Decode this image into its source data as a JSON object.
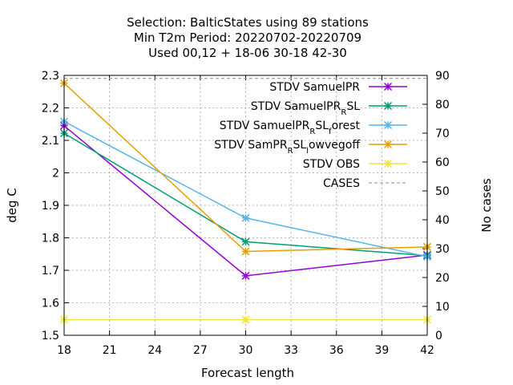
{
  "chart_data": {
    "type": "line",
    "title_lines": [
      "Selection: BalticStates using    89 stations",
      "Min T2m   Period: 20220702-20220709",
      "Used  00,12  + 18-06 30-18 42-30"
    ],
    "xlabel": "Forecast length",
    "ylabel": "deg C",
    "y2label": "No cases",
    "xlim": [
      18,
      42
    ],
    "ylim": [
      1.5,
      2.3
    ],
    "y2lim": [
      0,
      90
    ],
    "xticks": [
      "18",
      "21",
      "24",
      "27",
      "30",
      "33",
      "36",
      "39",
      "42"
    ],
    "yticks": [
      "1.5",
      "1.6",
      "1.7",
      "1.8",
      "1.9",
      "2",
      "2.1",
      "2.2",
      "2.3"
    ],
    "y2ticks": [
      "0",
      "10",
      "20",
      "30",
      "40",
      "50",
      "60",
      "70",
      "80",
      "90"
    ],
    "grid": true,
    "legend_position": "top-right",
    "x": [
      18,
      30,
      42
    ],
    "series": [
      {
        "name": "STDV SamuelPR",
        "name_parts": [
          {
            "t": "STDV SamuelPR"
          }
        ],
        "color": "#9400d3",
        "values": [
          2.145,
          1.683,
          1.747
        ]
      },
      {
        "name": "STDV SamuelPR_RSL",
        "name_parts": [
          {
            "t": "STDV SamuelPR"
          },
          {
            "t": "R",
            "sub": true
          },
          {
            "t": "SL"
          }
        ],
        "color": "#009e73",
        "values": [
          2.122,
          1.788,
          1.745
        ]
      },
      {
        "name": "STDV SamuelPR_RSL_forest",
        "name_parts": [
          {
            "t": "STDV SamuelPR"
          },
          {
            "t": "R",
            "sub": true
          },
          {
            "t": "SL"
          },
          {
            "t": "f",
            "sub": true
          },
          {
            "t": "orest"
          }
        ],
        "color": "#56b4e9",
        "values": [
          2.158,
          1.861,
          1.742
        ]
      },
      {
        "name": "STDV SamPR_RSL_lowvegoff",
        "name_parts": [
          {
            "t": "STDV SamPR"
          },
          {
            "t": "R",
            "sub": true
          },
          {
            "t": "SL"
          },
          {
            "t": "l",
            "sub": true
          },
          {
            "t": "owvegoff"
          }
        ],
        "color": "#e69f00",
        "values": [
          2.276,
          1.758,
          1.772
        ]
      },
      {
        "name": "STDV OBS",
        "name_parts": [
          {
            "t": "STDV OBS"
          }
        ],
        "color": "#f0e442",
        "values": [
          1.548,
          1.548,
          1.548
        ]
      }
    ],
    "cases": {
      "name": "CASES",
      "color": "#a0a0a0",
      "axis": "y2",
      "values": [
        89,
        89,
        89
      ]
    }
  }
}
